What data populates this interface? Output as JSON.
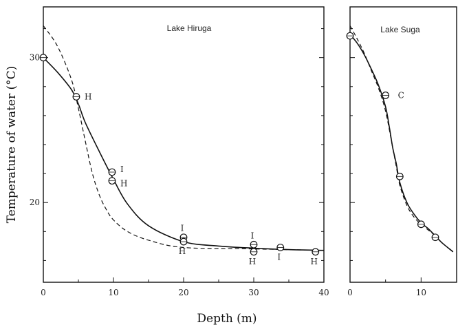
{
  "chart_data": [
    {
      "type": "line",
      "title": "Lake Hiruga",
      "xlabel": "Depth (m)",
      "ylabel": "Temperature of water (°C)",
      "xlim": [
        0,
        40
      ],
      "ylim": [
        14.5,
        33.5
      ],
      "x_ticks": [
        0,
        10,
        20,
        30,
        40
      ],
      "y_ticks": [
        20,
        30
      ],
      "series": [
        {
          "style": "solid",
          "x": [
            0,
            2,
            4,
            5,
            6,
            8,
            10,
            12,
            15,
            20,
            25,
            30,
            35,
            40
          ],
          "y": [
            30.0,
            29.0,
            27.8,
            26.8,
            25.5,
            23.5,
            21.6,
            19.9,
            18.4,
            17.3,
            17.0,
            16.85,
            16.75,
            16.7
          ]
        },
        {
          "style": "dashed",
          "x": [
            0,
            2,
            4,
            5,
            6,
            7,
            8,
            9,
            10,
            12,
            15,
            20,
            30,
            40
          ],
          "y": [
            32.2,
            30.8,
            28.5,
            26.5,
            24.2,
            22.0,
            20.5,
            19.5,
            18.8,
            18.0,
            17.4,
            16.9,
            16.8,
            16.7
          ]
        }
      ],
      "points": [
        {
          "x": 0,
          "y": 30.0,
          "label": ""
        },
        {
          "x": 4.7,
          "y": 27.3,
          "label": "H"
        },
        {
          "x": 9.8,
          "y": 22.1,
          "label": "I"
        },
        {
          "x": 9.8,
          "y": 21.5,
          "label": "H"
        },
        {
          "x": 20,
          "y": 17.6,
          "label": "I"
        },
        {
          "x": 20,
          "y": 17.3,
          "label": "H"
        },
        {
          "x": 30,
          "y": 17.1,
          "label": "I"
        },
        {
          "x": 30,
          "y": 16.6,
          "label": "H"
        },
        {
          "x": 33.8,
          "y": 16.9,
          "label": "I"
        },
        {
          "x": 38.8,
          "y": 16.6,
          "label": "H"
        }
      ]
    },
    {
      "type": "line",
      "title": "Lake Suga",
      "xlabel": "Depth (m)",
      "ylabel": "Temperature of water (°C)",
      "xlim": [
        0,
        15
      ],
      "ylim": [
        14.5,
        33.5
      ],
      "x_ticks": [
        0,
        10
      ],
      "y_ticks": [],
      "series": [
        {
          "style": "solid",
          "x": [
            0,
            1,
            2,
            3,
            4,
            5,
            5.5,
            6,
            6.5,
            7,
            8,
            9,
            10,
            11,
            12,
            13,
            14.5
          ],
          "y": [
            31.6,
            31.0,
            30.2,
            29.2,
            28.1,
            26.6,
            25.3,
            23.8,
            22.7,
            21.4,
            20.0,
            19.2,
            18.6,
            18.2,
            17.7,
            17.2,
            16.6
          ]
        },
        {
          "style": "dashed",
          "x": [
            0,
            1,
            2,
            3,
            4,
            5,
            6,
            6.5,
            7,
            8,
            9,
            10,
            11,
            12,
            13,
            14.5
          ],
          "y": [
            32.2,
            31.3,
            30.3,
            29.1,
            27.9,
            26.3,
            23.8,
            22.5,
            21.2,
            19.8,
            19.0,
            18.5,
            18.1,
            17.7,
            17.2,
            16.6
          ]
        }
      ],
      "points": [
        {
          "x": 0,
          "y": 31.5,
          "label": ""
        },
        {
          "x": 5,
          "y": 27.4,
          "label": "C"
        },
        {
          "x": 7,
          "y": 21.8,
          "label": ""
        },
        {
          "x": 10,
          "y": 18.5,
          "label": ""
        },
        {
          "x": 12,
          "y": 17.6,
          "label": ""
        }
      ]
    }
  ]
}
